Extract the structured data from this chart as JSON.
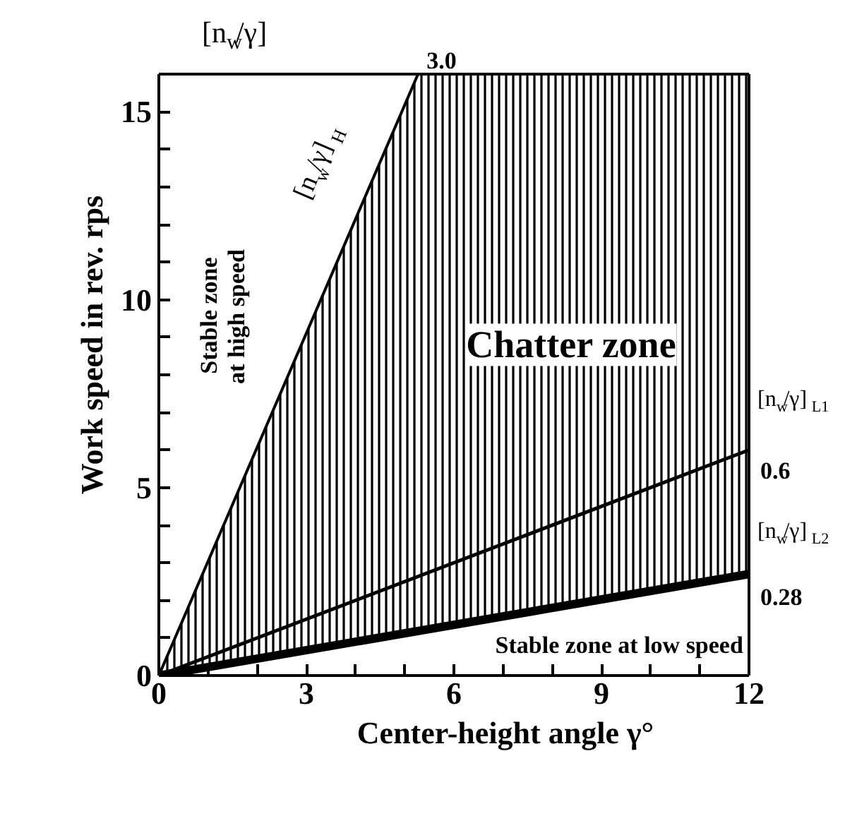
{
  "chart_data": {
    "type": "line",
    "xlabel": "Center-height angle γ°",
    "ylabel": "Work speed in rev.  rps",
    "xlim": [
      0,
      12
    ],
    "ylim": [
      0,
      16
    ],
    "xticks": [
      0,
      {
        "value": 1,
        "label": null
      },
      {
        "value": 2,
        "label": null
      },
      3,
      {
        "value": 4,
        "label": null
      },
      {
        "value": 5,
        "label": null
      },
      6,
      {
        "value": 7,
        "label": null
      },
      {
        "value": 8,
        "label": null
      },
      9,
      {
        "value": 10,
        "label": null
      },
      {
        "value": 11,
        "label": null
      },
      12
    ],
    "yticks": [
      0,
      {
        "value": 1,
        "label": null
      },
      {
        "value": 2,
        "label": null
      },
      {
        "value": 3,
        "label": null
      },
      {
        "value": 4,
        "label": null
      },
      5,
      {
        "value": 6,
        "label": null
      },
      {
        "value": 7,
        "label": null
      },
      {
        "value": 8,
        "label": null
      },
      {
        "value": 9,
        "label": null
      },
      10,
      {
        "value": 11,
        "label": null
      },
      {
        "value": 12,
        "label": null
      },
      {
        "value": 13,
        "label": null
      },
      {
        "value": 14,
        "label": null
      },
      15
    ],
    "grid": false,
    "marker": "none",
    "line_style": "solid",
    "series": [
      {
        "color": "#000000",
        "x": [
          0,
          5.27
        ],
        "values": [
          0,
          16
        ]
      },
      {
        "color": "#000000",
        "x": [
          0,
          12
        ],
        "values": [
          0,
          6.0
        ]
      },
      {
        "color": "#000000",
        "x": [
          0,
          12
        ],
        "values": [
          0,
          2.7
        ]
      }
    ],
    "annotations": [
      "Chatter zone",
      "Stable zone\nat high speed",
      "Stable zone at low speed",
      "[n$_{w}$/γ]$_{H}$",
      "[n$_{w}$/γ]",
      "3.0",
      "[n$_{w}$/γ]$_{L1}$",
      "0.6",
      "[n$_{w}$/γ]$_{L2}$",
      "0.28"
    ]
  }
}
